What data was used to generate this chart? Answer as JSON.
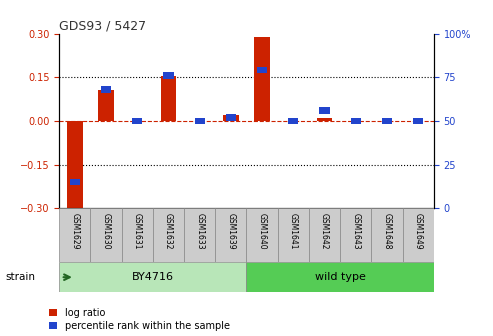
{
  "title": "GDS93 / 5427",
  "samples": [
    "GSM1629",
    "GSM1630",
    "GSM1631",
    "GSM1632",
    "GSM1633",
    "GSM1639",
    "GSM1640",
    "GSM1641",
    "GSM1642",
    "GSM1643",
    "GSM1648",
    "GSM1649"
  ],
  "log_ratio": [
    -0.305,
    0.105,
    0.0,
    0.155,
    0.0,
    0.02,
    0.29,
    0.0,
    0.01,
    0.0,
    0.0,
    0.0
  ],
  "percentile": [
    15,
    68,
    50,
    76,
    50,
    52,
    79,
    50,
    56,
    50,
    50,
    50
  ],
  "groups": [
    {
      "label": "BY4716",
      "start": 0,
      "end": 5,
      "color": "#b8e6b8"
    },
    {
      "label": "wild type",
      "start": 6,
      "end": 11,
      "color": "#55cc55"
    }
  ],
  "log_ratio_color": "#cc2200",
  "percentile_color": "#2244cc",
  "ylim_left": [
    -0.3,
    0.3
  ],
  "ylim_right": [
    0,
    100
  ],
  "yticks_left": [
    -0.3,
    -0.15,
    0.0,
    0.15,
    0.3
  ],
  "yticks_right": [
    0,
    25,
    50,
    75,
    100
  ],
  "hlines": [
    0.15,
    -0.15
  ],
  "hline_zero_color": "#cc2200",
  "hline_dot_color": "#000000",
  "bar_width": 0.5,
  "strain_label": "strain",
  "legend_log_ratio": "log ratio",
  "legend_percentile": "percentile rank within the sample",
  "background_color": "#ffffff",
  "tick_label_color_left": "#cc2200",
  "tick_label_color_right": "#2244cc",
  "group_border_color": "#888888",
  "sample_box_color": "#cccccc"
}
